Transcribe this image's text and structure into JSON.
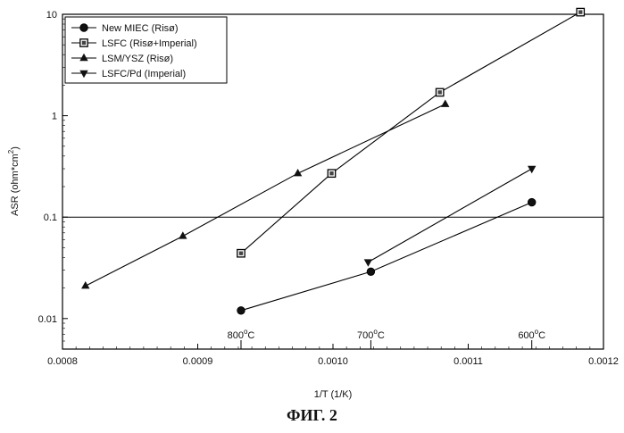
{
  "caption": "ФИГ. 2",
  "chart_data": {
    "type": "line",
    "xlabel": "1/T (1/K)",
    "ylabel": "ASR (ohm*cm²)",
    "ylabel_parts": {
      "main": "ASR (ohm*cm",
      "sup": "2",
      "end": ")"
    },
    "xlim": [
      0.0008,
      0.0012
    ],
    "ylim": [
      0.005,
      10
    ],
    "yscale": "log",
    "x_ticks": [
      "0.0008",
      "0.0009",
      "0.0010",
      "0.0011",
      "0.0012"
    ],
    "y_ticks": [
      "0.01",
      "0.1",
      "1",
      "10"
    ],
    "legend_position": "top-left",
    "series": [
      {
        "name": "New MIEC (Risø)",
        "marker": "circle",
        "x": [
          0.000932,
          0.001028,
          0.001147
        ],
        "y": [
          0.012,
          0.029,
          0.14
        ]
      },
      {
        "name": "LSFC (Risø+Imperial)",
        "marker": "square",
        "x": [
          0.000932,
          0.000999,
          0.001079,
          0.001183
        ],
        "y": [
          0.044,
          0.27,
          1.7,
          10.5
        ]
      },
      {
        "name": "LSM/YSZ (Risø)",
        "marker": "triangle-up",
        "x": [
          0.000817,
          0.000889,
          0.000974,
          0.001083
        ],
        "y": [
          0.021,
          0.065,
          0.27,
          1.3
        ]
      },
      {
        "name": "LSFC/Pd (Imperial)",
        "marker": "triangle-down",
        "x": [
          0.001026,
          0.001147
        ],
        "y": [
          0.036,
          0.3
        ]
      }
    ],
    "reference_line": {
      "y": 0.1
    },
    "annotations": [
      {
        "value": "800",
        "unit": "C",
        "x": 0.000932
      },
      {
        "value": "700",
        "unit": "C",
        "x": 0.001028
      },
      {
        "value": "600",
        "unit": "C",
        "x": 0.001147
      }
    ]
  }
}
